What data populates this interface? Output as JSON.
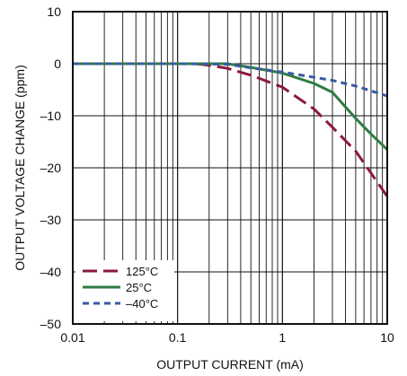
{
  "chart_data": {
    "type": "line",
    "xlabel": "OUTPUT CURRENT (mA)",
    "ylabel": "OUTPUT VOLTAGE CHANGE (ppm)",
    "xscale": "log",
    "xlim": [
      0.01,
      10
    ],
    "ylim": [
      -50,
      10
    ],
    "x_ticks": [
      0.01,
      0.1,
      1,
      10
    ],
    "x_tick_labels": [
      "0.01",
      "0.1",
      "1",
      "10"
    ],
    "y_ticks": [
      10,
      0,
      -10,
      -20,
      -30,
      -40,
      -50
    ],
    "y_tick_labels": [
      "10",
      "0",
      "–10",
      "–20",
      "–30",
      "–40",
      "–50"
    ],
    "grid": true,
    "legend_position": "bottom-left",
    "series": [
      {
        "name": "125°C",
        "color": "#8b1a3a",
        "dash": "long-dash",
        "points": [
          [
            0.01,
            0
          ],
          [
            0.1,
            0
          ],
          [
            0.15,
            0
          ],
          [
            0.2,
            -0.3
          ],
          [
            0.3,
            -0.9
          ],
          [
            0.5,
            -2.2
          ],
          [
            1,
            -4.5
          ],
          [
            2,
            -8.7
          ],
          [
            3,
            -12.2
          ],
          [
            5,
            -16.8
          ],
          [
            7,
            -21.0
          ],
          [
            10,
            -25.5
          ]
        ]
      },
      {
        "name": "25°C",
        "color": "#2e7d43",
        "dash": "solid",
        "points": [
          [
            0.01,
            0
          ],
          [
            0.1,
            0
          ],
          [
            0.3,
            0
          ],
          [
            0.5,
            -0.7
          ],
          [
            1,
            -1.8
          ],
          [
            2,
            -3.8
          ],
          [
            3,
            -5.5
          ],
          [
            5,
            -10.5
          ],
          [
            7,
            -13.5
          ],
          [
            10,
            -16.5
          ]
        ]
      },
      {
        "name": "–40°C",
        "color": "#3a5aa0",
        "dash": "short-dash",
        "points": [
          [
            0.01,
            0
          ],
          [
            0.1,
            0
          ],
          [
            0.3,
            -0.1
          ],
          [
            0.5,
            -0.8
          ],
          [
            1,
            -1.6
          ],
          [
            2,
            -2.6
          ],
          [
            3,
            -3.2
          ],
          [
            5,
            -4.3
          ],
          [
            7,
            -5.2
          ],
          [
            10,
            -6.2
          ]
        ]
      }
    ]
  }
}
